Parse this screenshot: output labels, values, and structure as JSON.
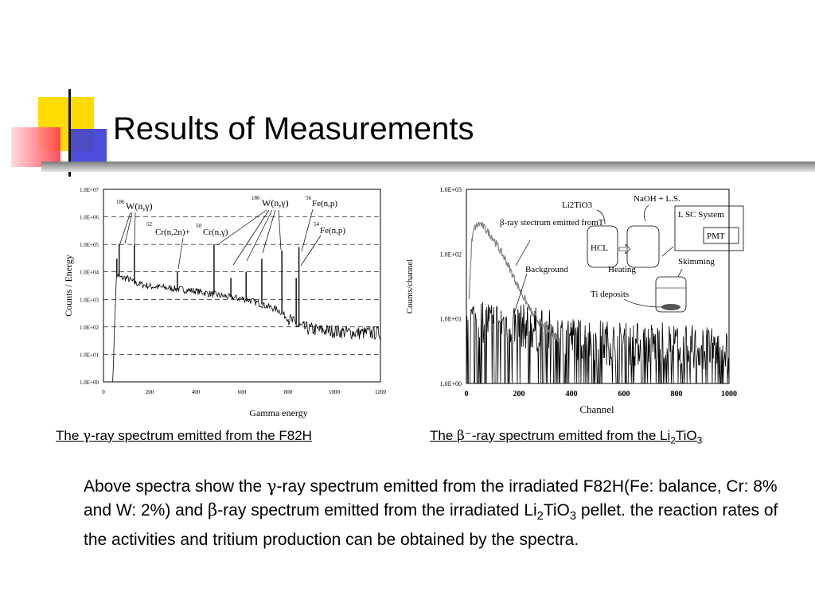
{
  "slide": {
    "title": "Results of Measurements",
    "accent_colors": {
      "yellow": "#ffdc00",
      "red": "#ff3c4c",
      "blue": "#3a3ad8"
    }
  },
  "captions": {
    "left": {
      "prefix": "The ",
      "symbol": "γ",
      "suffix": "-ray spectrum emitted from the F82H"
    },
    "right": {
      "prefix": "The ",
      "symbol": "β⁻",
      "suffix": "-ray spectrum emitted from the Li",
      "sub1": "2",
      "mid": "TiO",
      "sub2": "3"
    }
  },
  "body": {
    "t1": "Above spectra show the ",
    "g": "γ",
    "t2": "-ray spectrum emitted from the irradiated F82H(Fe: balance, Cr: 8% and W: 2%) and ",
    "b": "β",
    "t3": "-ray spectrum emitted from the irradiated Li",
    "s1": "2",
    "t4": "TiO",
    "s2": "3",
    "t5": " pellet. the reaction rates of the activities and tritium production can be obtained by the spectra."
  },
  "chart_data": [
    {
      "type": "line",
      "xlabel": "Gamma energy",
      "ylabel": "Counts / Energy",
      "xlim": [
        0,
        1200
      ],
      "ylim_log10": [
        0,
        7
      ],
      "scale_y": "log",
      "x_ticks": [
        "0",
        "200",
        "400",
        "600",
        "800",
        "1000",
        "1200"
      ],
      "y_ticks": [
        "1.0E+00",
        "1.0E+01",
        "1.0E+02",
        "1.0E+03",
        "1.0E+04",
        "1.0E+05",
        "1.0E+06",
        "1.0E+07"
      ],
      "grid": "horizontal dashed",
      "series": [
        {
          "x": [
            40,
            55,
            60,
            75,
            100,
            135,
            200,
            300,
            400,
            480,
            550,
            620,
            700,
            760,
            800,
            850,
            900,
            1000,
            1100,
            1200
          ],
          "y": [
            1,
            5000,
            8000,
            6000,
            6000,
            4000,
            3000,
            2500,
            2000,
            1500,
            1200,
            1000,
            600,
            400,
            200,
            100,
            80,
            70,
            60,
            60
          ]
        }
      ],
      "peaks": [
        {
          "x": 58,
          "y": 30000
        },
        {
          "x": 68,
          "y": 100000
        },
        {
          "x": 134,
          "y": 100000
        },
        {
          "x": 320,
          "y": 10000
        },
        {
          "x": 479,
          "y": 100000
        },
        {
          "x": 552,
          "y": 6000
        },
        {
          "x": 618,
          "y": 10000
        },
        {
          "x": 686,
          "y": 30000
        },
        {
          "x": 773,
          "y": 60000
        },
        {
          "x": 835,
          "y": 6000
        },
        {
          "x": 847,
          "y": 80000
        }
      ],
      "annotations": [
        {
          "sup": "186",
          "text": "W(n,γ)"
        },
        {
          "sup1": "52",
          "text1": "Cr(n,2n)+",
          "sup2": "50",
          "text2": "Cr(n,γ)"
        },
        {
          "sup": "186",
          "text": "W(n,γ)"
        },
        {
          "sup": "56",
          "text": "Fe(n,p)"
        },
        {
          "sup": "54",
          "text": "Fe(n,p)"
        }
      ]
    },
    {
      "type": "line",
      "xlabel": "Channel",
      "ylabel": "Counts/channel",
      "xlim": [
        0,
        1000
      ],
      "ylim_log10": [
        0,
        3
      ],
      "scale_y": "log",
      "x_ticks": [
        "0",
        "200",
        "400",
        "600",
        "800",
        "1000"
      ],
      "y_ticks": [
        "1.0E+00",
        "1.0E+01",
        "1.0E+02",
        "1.0E+03"
      ],
      "series": [
        {
          "name": "β-ray stectrum emitted fromT",
          "color": "#808080",
          "x": [
            10,
            20,
            30,
            50,
            70,
            100,
            150,
            200,
            250,
            300,
            350
          ],
          "y": [
            20,
            150,
            250,
            300,
            250,
            180,
            80,
            30,
            12,
            7,
            5
          ]
        },
        {
          "name": "Background",
          "color": "#000000",
          "x": [
            0,
            200,
            400,
            600,
            800,
            1000
          ],
          "y": [
            10,
            8,
            5,
            4,
            4,
            3
          ]
        }
      ],
      "annotations": [
        "β-ray stectrum emitted fromT",
        "Background"
      ],
      "inset": {
        "labels": [
          "Li2TiO3",
          "NaOH + L.S.",
          "L SC System",
          "PMT",
          "HCL",
          "Heating",
          "Skimming",
          "Ti deposits"
        ]
      }
    }
  ]
}
